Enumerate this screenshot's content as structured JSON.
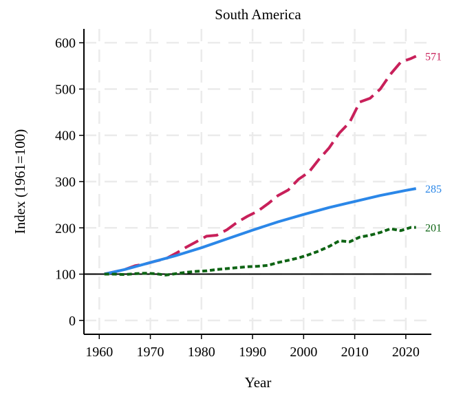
{
  "chart_data": {
    "type": "line",
    "title": "South America",
    "xlabel": "Year",
    "ylabel": "Index (1961=100)",
    "xlim": [
      1957,
      2025
    ],
    "ylim": [
      -30,
      630
    ],
    "xticks": [
      1960,
      1970,
      1980,
      1990,
      2000,
      2010,
      2020
    ],
    "yticks": [
      0,
      100,
      200,
      300,
      400,
      500,
      600
    ],
    "grid": true,
    "reference_line": 100,
    "colors": {
      "axis": "#000000",
      "grid": "#ebebeb",
      "reference": "#000000"
    },
    "series": [
      {
        "name": "series-crimson-dashed",
        "color": "#c8205a",
        "dash": "long",
        "end_label": "571",
        "x": [
          1961,
          1963,
          1965,
          1967,
          1969,
          1971,
          1973,
          1975,
          1977,
          1979,
          1981,
          1983,
          1985,
          1987,
          1989,
          1991,
          1993,
          1995,
          1997,
          1999,
          2001,
          2003,
          2005,
          2007,
          2009,
          2011,
          2013,
          2015,
          2017,
          2019,
          2021,
          2022
        ],
        "values": [
          100,
          105,
          110,
          118,
          122,
          128,
          133,
          145,
          158,
          170,
          182,
          184,
          196,
          212,
          225,
          236,
          252,
          270,
          282,
          305,
          320,
          348,
          373,
          405,
          428,
          472,
          480,
          500,
          532,
          558,
          566,
          571
        ]
      },
      {
        "name": "series-blue-solid",
        "color": "#2b87e8",
        "dash": "solid",
        "end_label": "285",
        "x": [
          1961,
          1965,
          1970,
          1975,
          1980,
          1985,
          1990,
          1995,
          2000,
          2005,
          2010,
          2015,
          2020,
          2022
        ],
        "values": [
          100,
          110,
          125,
          140,
          157,
          176,
          195,
          213,
          229,
          244,
          257,
          270,
          281,
          285
        ]
      },
      {
        "name": "series-green-dotted",
        "color": "#0e6414",
        "dash": "dot",
        "end_label": "201",
        "x": [
          1961,
          1963,
          1965,
          1967,
          1969,
          1971,
          1973,
          1975,
          1977,
          1979,
          1981,
          1983,
          1985,
          1987,
          1989,
          1991,
          1993,
          1995,
          1997,
          1999,
          2001,
          2003,
          2005,
          2007,
          2009,
          2011,
          2013,
          2015,
          2017,
          2019,
          2021,
          2022
        ],
        "values": [
          100,
          100,
          99,
          101,
          102,
          101,
          98,
          101,
          104,
          106,
          107,
          110,
          112,
          114,
          116,
          117,
          119,
          125,
          130,
          135,
          142,
          150,
          160,
          172,
          170,
          180,
          184,
          190,
          198,
          194,
          201,
          201
        ]
      }
    ]
  }
}
